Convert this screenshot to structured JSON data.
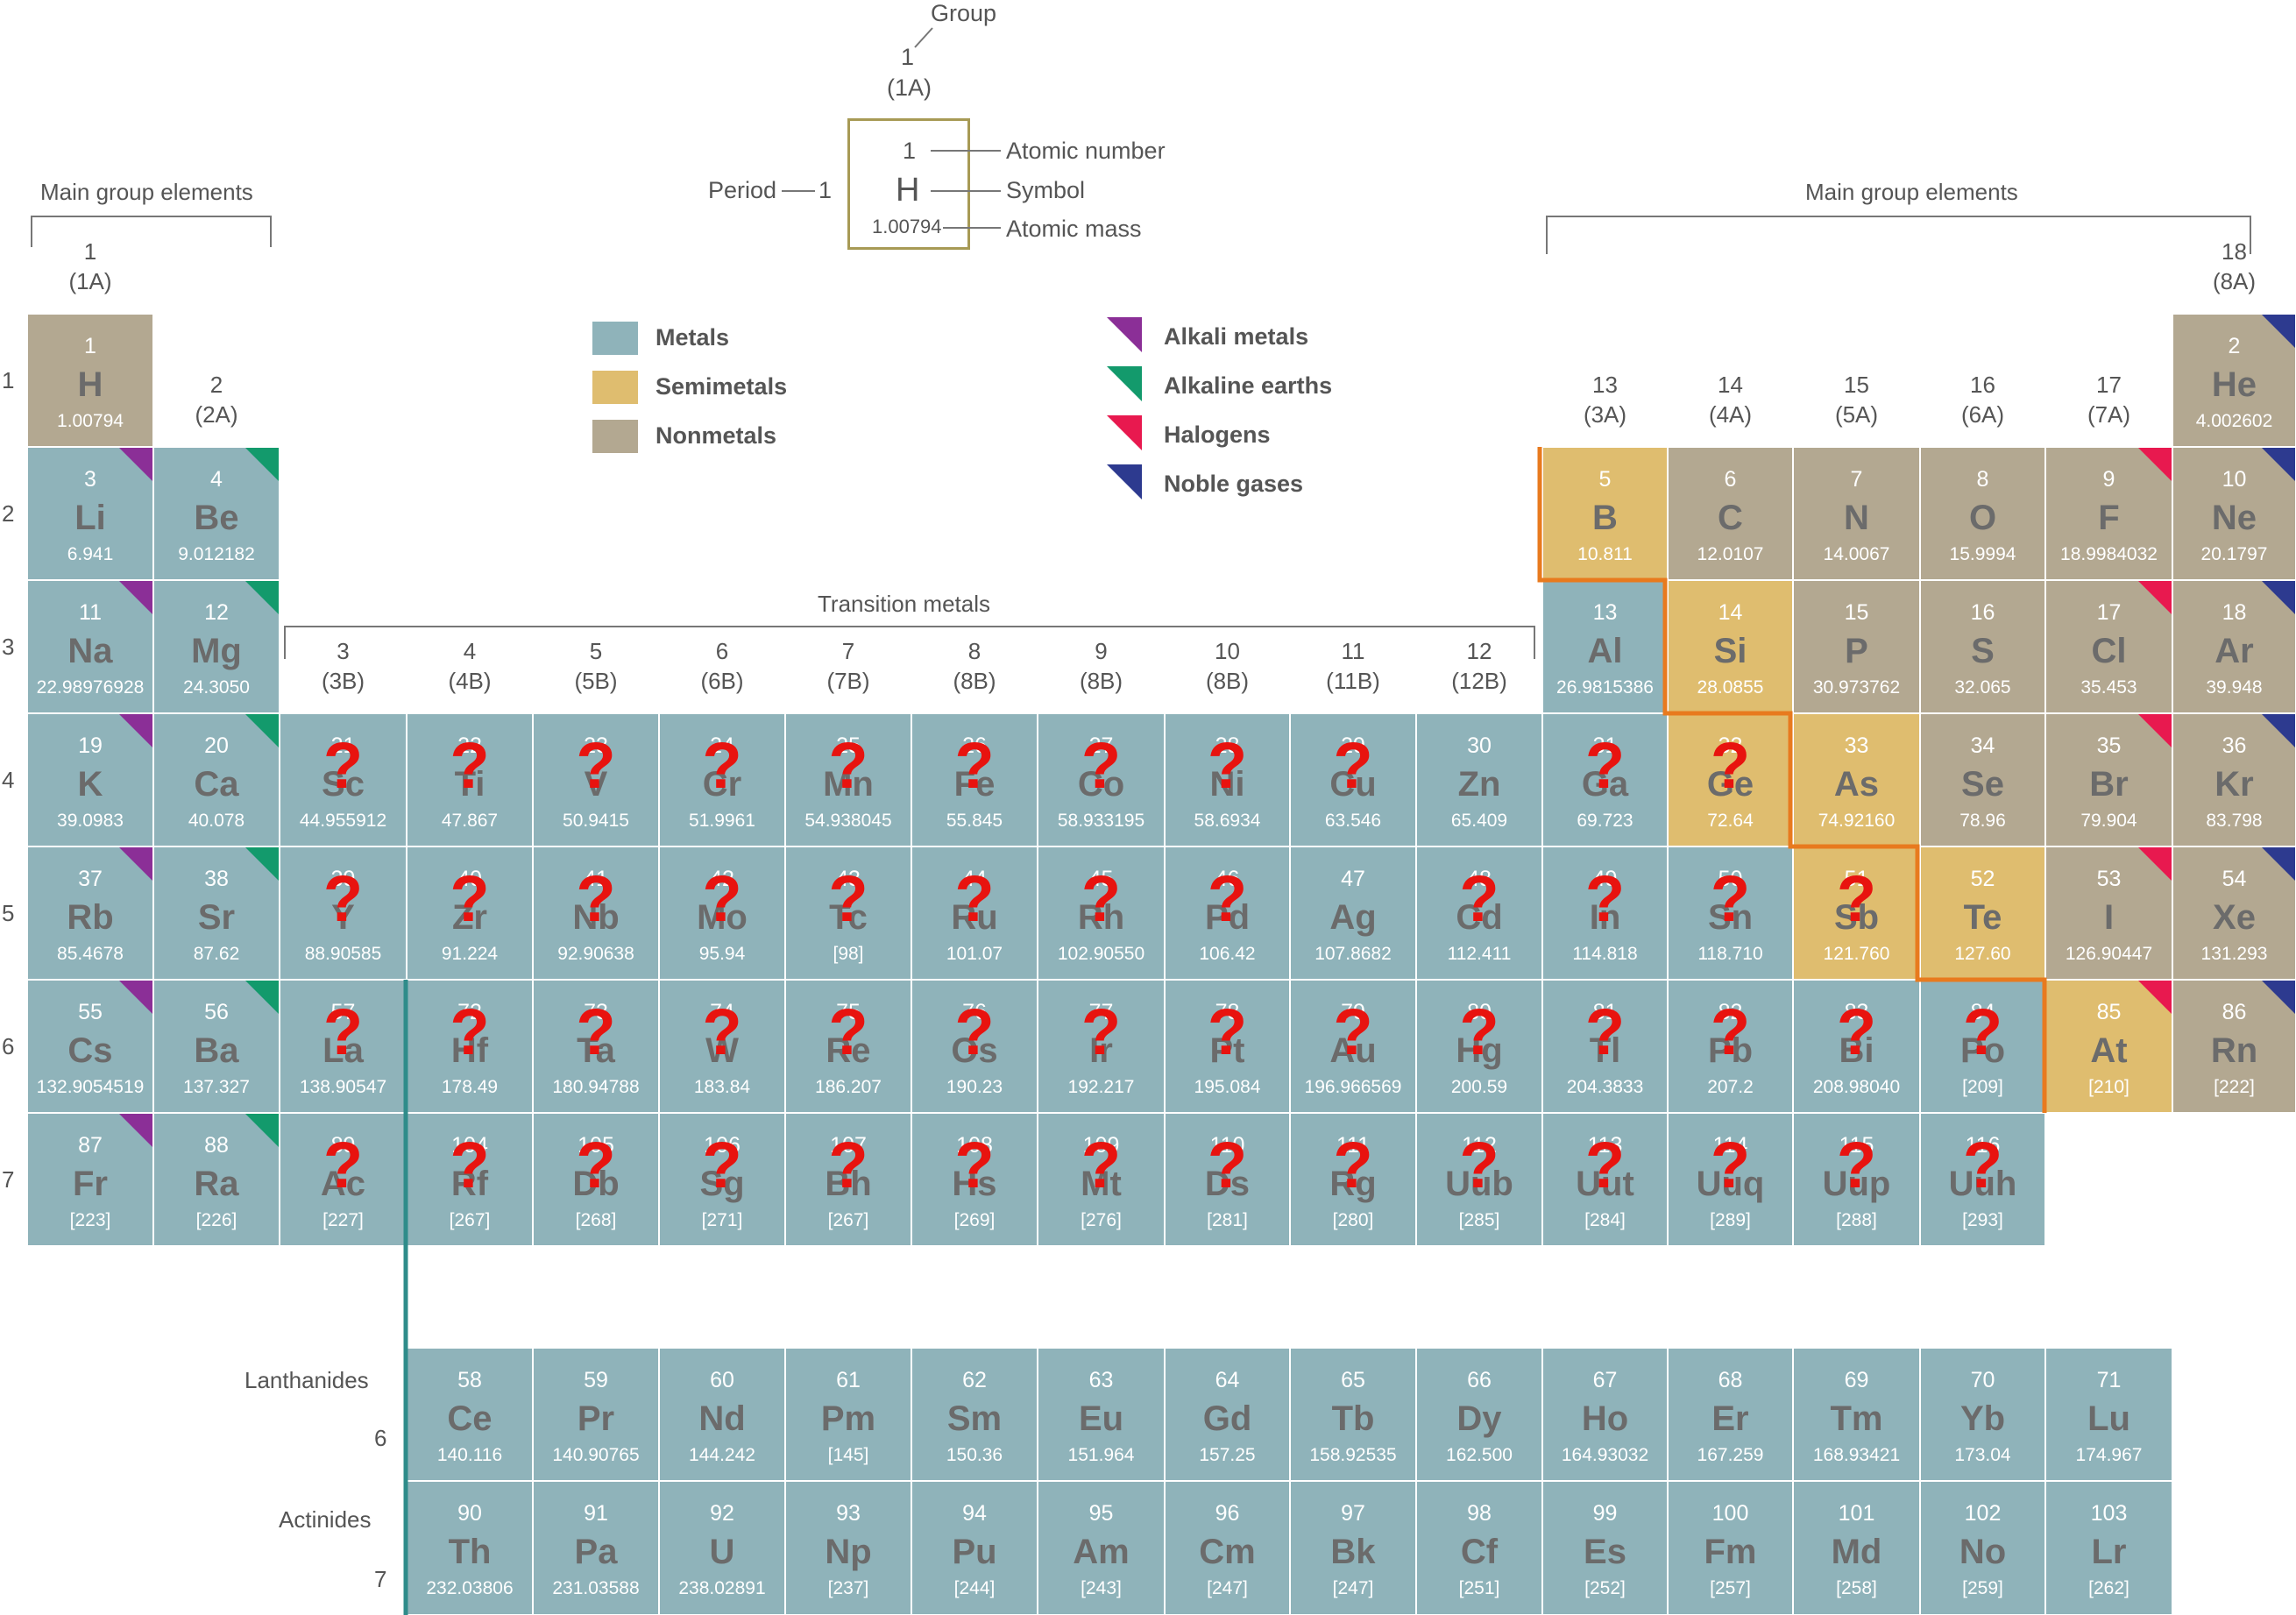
{
  "colors": {
    "metal": "#8fb3ba",
    "semimetal": "#dfbd6f",
    "nonmetal": "#b3a891",
    "alkali": "#8b2f97",
    "alkaline": "#139a6c",
    "halogen": "#e8194f",
    "noble": "#2d3a8f",
    "question": "#e8130f",
    "border": "#ffffff",
    "metalloid_line": "#e87a1e",
    "legend_box": "#a79a55",
    "fblock_line": "#2f8c8a"
  },
  "key": {
    "group_label": "Group",
    "group_num": "1",
    "group_sub": "(1A)",
    "period_label": "Period",
    "period_num": "1",
    "number": "1",
    "symbol": "H",
    "mass": "1.00794",
    "atomic_number_label": "Atomic number",
    "symbol_label": "Symbol",
    "atomic_mass_label": "Atomic mass"
  },
  "labels": {
    "main_group_left": "Main group elements",
    "main_group_right": "Main group elements",
    "transition": "Transition metals",
    "lanthanides": "Lanthanides",
    "actinides": "Actinides",
    "lan_period": "6",
    "act_period": "7"
  },
  "legend": {
    "categories": [
      {
        "label": "Metals",
        "color_key": "metal"
      },
      {
        "label": "Semimetals",
        "color_key": "semimetal"
      },
      {
        "label": "Nonmetals",
        "color_key": "nonmetal"
      }
    ],
    "families": [
      {
        "label": "Alkali metals",
        "color_key": "alkali"
      },
      {
        "label": "Alkaline earths",
        "color_key": "alkaline"
      },
      {
        "label": "Halogens",
        "color_key": "halogen"
      },
      {
        "label": "Noble gases",
        "color_key": "noble"
      }
    ]
  },
  "groups": [
    {
      "col": 1,
      "num": "1",
      "sub": "(1A)"
    },
    {
      "col": 2,
      "num": "2",
      "sub": "(2A)"
    },
    {
      "col": 3,
      "num": "3",
      "sub": "(3B)"
    },
    {
      "col": 4,
      "num": "4",
      "sub": "(4B)"
    },
    {
      "col": 5,
      "num": "5",
      "sub": "(5B)"
    },
    {
      "col": 6,
      "num": "6",
      "sub": "(6B)"
    },
    {
      "col": 7,
      "num": "7",
      "sub": "(7B)"
    },
    {
      "col": 8,
      "num": "8",
      "sub": "(8B)"
    },
    {
      "col": 9,
      "num": "9",
      "sub": "(8B)"
    },
    {
      "col": 10,
      "num": "10",
      "sub": "(8B)"
    },
    {
      "col": 11,
      "num": "11",
      "sub": "(11B)"
    },
    {
      "col": 12,
      "num": "12",
      "sub": "(12B)"
    },
    {
      "col": 13,
      "num": "13",
      "sub": "(3A)"
    },
    {
      "col": 14,
      "num": "14",
      "sub": "(4A)"
    },
    {
      "col": 15,
      "num": "15",
      "sub": "(5A)"
    },
    {
      "col": 16,
      "num": "16",
      "sub": "(6A)"
    },
    {
      "col": 17,
      "num": "17",
      "sub": "(7A)"
    },
    {
      "col": 18,
      "num": "18",
      "sub": "(8A)"
    }
  ],
  "periods": [
    "1",
    "2",
    "3",
    "4",
    "5",
    "6",
    "7"
  ],
  "elements": [
    {
      "n": "1",
      "s": "H",
      "m": "1.00794",
      "r": 1,
      "c": 1,
      "cat": "nonmetal"
    },
    {
      "n": "2",
      "s": "He",
      "m": "4.002602",
      "r": 1,
      "c": 18,
      "cat": "nonmetal",
      "fam": "noble"
    },
    {
      "n": "3",
      "s": "Li",
      "m": "6.941",
      "r": 2,
      "c": 1,
      "cat": "metal",
      "fam": "alkali"
    },
    {
      "n": "4",
      "s": "Be",
      "m": "9.012182",
      "r": 2,
      "c": 2,
      "cat": "metal",
      "fam": "alkaline"
    },
    {
      "n": "5",
      "s": "B",
      "m": "10.811",
      "r": 2,
      "c": 13,
      "cat": "semimetal"
    },
    {
      "n": "6",
      "s": "C",
      "m": "12.0107",
      "r": 2,
      "c": 14,
      "cat": "nonmetal"
    },
    {
      "n": "7",
      "s": "N",
      "m": "14.0067",
      "r": 2,
      "c": 15,
      "cat": "nonmetal"
    },
    {
      "n": "8",
      "s": "O",
      "m": "15.9994",
      "r": 2,
      "c": 16,
      "cat": "nonmetal"
    },
    {
      "n": "9",
      "s": "F",
      "m": "18.9984032",
      "r": 2,
      "c": 17,
      "cat": "nonmetal",
      "fam": "halogen"
    },
    {
      "n": "10",
      "s": "Ne",
      "m": "20.1797",
      "r": 2,
      "c": 18,
      "cat": "nonmetal",
      "fam": "noble"
    },
    {
      "n": "11",
      "s": "Na",
      "m": "22.98976928",
      "r": 3,
      "c": 1,
      "cat": "metal",
      "fam": "alkali"
    },
    {
      "n": "12",
      "s": "Mg",
      "m": "24.3050",
      "r": 3,
      "c": 2,
      "cat": "metal",
      "fam": "alkaline"
    },
    {
      "n": "13",
      "s": "Al",
      "m": "26.9815386",
      "r": 3,
      "c": 13,
      "cat": "metal"
    },
    {
      "n": "14",
      "s": "Si",
      "m": "28.0855",
      "r": 3,
      "c": 14,
      "cat": "semimetal"
    },
    {
      "n": "15",
      "s": "P",
      "m": "30.973762",
      "r": 3,
      "c": 15,
      "cat": "nonmetal"
    },
    {
      "n": "16",
      "s": "S",
      "m": "32.065",
      "r": 3,
      "c": 16,
      "cat": "nonmetal"
    },
    {
      "n": "17",
      "s": "Cl",
      "m": "35.453",
      "r": 3,
      "c": 17,
      "cat": "nonmetal",
      "fam": "halogen"
    },
    {
      "n": "18",
      "s": "Ar",
      "m": "39.948",
      "r": 3,
      "c": 18,
      "cat": "nonmetal",
      "fam": "noble"
    },
    {
      "n": "19",
      "s": "K",
      "m": "39.0983",
      "r": 4,
      "c": 1,
      "cat": "metal",
      "fam": "alkali"
    },
    {
      "n": "20",
      "s": "Ca",
      "m": "40.078",
      "r": 4,
      "c": 2,
      "cat": "metal",
      "fam": "alkaline"
    },
    {
      "n": "21",
      "s": "Sc",
      "m": "44.955912",
      "r": 4,
      "c": 3,
      "cat": "metal",
      "q": true
    },
    {
      "n": "22",
      "s": "Ti",
      "m": "47.867",
      "r": 4,
      "c": 4,
      "cat": "metal",
      "q": true
    },
    {
      "n": "23",
      "s": "V",
      "m": "50.9415",
      "r": 4,
      "c": 5,
      "cat": "metal",
      "q": true
    },
    {
      "n": "24",
      "s": "Cr",
      "m": "51.9961",
      "r": 4,
      "c": 6,
      "cat": "metal",
      "q": true
    },
    {
      "n": "25",
      "s": "Mn",
      "m": "54.938045",
      "r": 4,
      "c": 7,
      "cat": "metal",
      "q": true
    },
    {
      "n": "26",
      "s": "Fe",
      "m": "55.845",
      "r": 4,
      "c": 8,
      "cat": "metal",
      "q": true
    },
    {
      "n": "27",
      "s": "Co",
      "m": "58.933195",
      "r": 4,
      "c": 9,
      "cat": "metal",
      "q": true
    },
    {
      "n": "28",
      "s": "Ni",
      "m": "58.6934",
      "r": 4,
      "c": 10,
      "cat": "metal",
      "q": true
    },
    {
      "n": "29",
      "s": "Cu",
      "m": "63.546",
      "r": 4,
      "c": 11,
      "cat": "metal",
      "q": true
    },
    {
      "n": "30",
      "s": "Zn",
      "m": "65.409",
      "r": 4,
      "c": 12,
      "cat": "metal"
    },
    {
      "n": "31",
      "s": "Ga",
      "m": "69.723",
      "r": 4,
      "c": 13,
      "cat": "metal",
      "q": true
    },
    {
      "n": "32",
      "s": "Ge",
      "m": "72.64",
      "r": 4,
      "c": 14,
      "cat": "semimetal",
      "q": true
    },
    {
      "n": "33",
      "s": "As",
      "m": "74.92160",
      "r": 4,
      "c": 15,
      "cat": "semimetal"
    },
    {
      "n": "34",
      "s": "Se",
      "m": "78.96",
      "r": 4,
      "c": 16,
      "cat": "nonmetal"
    },
    {
      "n": "35",
      "s": "Br",
      "m": "79.904",
      "r": 4,
      "c": 17,
      "cat": "nonmetal",
      "fam": "halogen"
    },
    {
      "n": "36",
      "s": "Kr",
      "m": "83.798",
      "r": 4,
      "c": 18,
      "cat": "nonmetal",
      "fam": "noble"
    },
    {
      "n": "37",
      "s": "Rb",
      "m": "85.4678",
      "r": 5,
      "c": 1,
      "cat": "metal",
      "fam": "alkali"
    },
    {
      "n": "38",
      "s": "Sr",
      "m": "87.62",
      "r": 5,
      "c": 2,
      "cat": "metal",
      "fam": "alkaline"
    },
    {
      "n": "39",
      "s": "Y",
      "m": "88.90585",
      "r": 5,
      "c": 3,
      "cat": "metal",
      "q": true
    },
    {
      "n": "40",
      "s": "Zr",
      "m": "91.224",
      "r": 5,
      "c": 4,
      "cat": "metal",
      "q": true
    },
    {
      "n": "41",
      "s": "Nb",
      "m": "92.90638",
      "r": 5,
      "c": 5,
      "cat": "metal",
      "q": true
    },
    {
      "n": "42",
      "s": "Mo",
      "m": "95.94",
      "r": 5,
      "c": 6,
      "cat": "metal",
      "q": true
    },
    {
      "n": "43",
      "s": "Tc",
      "m": "[98]",
      "r": 5,
      "c": 7,
      "cat": "metal",
      "q": true
    },
    {
      "n": "44",
      "s": "Ru",
      "m": "101.07",
      "r": 5,
      "c": 8,
      "cat": "metal",
      "q": true
    },
    {
      "n": "45",
      "s": "Rh",
      "m": "102.90550",
      "r": 5,
      "c": 9,
      "cat": "metal",
      "q": true
    },
    {
      "n": "46",
      "s": "Pd",
      "m": "106.42",
      "r": 5,
      "c": 10,
      "cat": "metal",
      "q": true
    },
    {
      "n": "47",
      "s": "Ag",
      "m": "107.8682",
      "r": 5,
      "c": 11,
      "cat": "metal"
    },
    {
      "n": "48",
      "s": "Cd",
      "m": "112.411",
      "r": 5,
      "c": 12,
      "cat": "metal",
      "q": true
    },
    {
      "n": "49",
      "s": "In",
      "m": "114.818",
      "r": 5,
      "c": 13,
      "cat": "metal",
      "q": true
    },
    {
      "n": "50",
      "s": "Sn",
      "m": "118.710",
      "r": 5,
      "c": 14,
      "cat": "metal",
      "q": true
    },
    {
      "n": "51",
      "s": "Sb",
      "m": "121.760",
      "r": 5,
      "c": 15,
      "cat": "semimetal",
      "q": true
    },
    {
      "n": "52",
      "s": "Te",
      "m": "127.60",
      "r": 5,
      "c": 16,
      "cat": "semimetal"
    },
    {
      "n": "53",
      "s": "I",
      "m": "126.90447",
      "r": 5,
      "c": 17,
      "cat": "nonmetal",
      "fam": "halogen"
    },
    {
      "n": "54",
      "s": "Xe",
      "m": "131.293",
      "r": 5,
      "c": 18,
      "cat": "nonmetal",
      "fam": "noble"
    },
    {
      "n": "55",
      "s": "Cs",
      "m": "132.9054519",
      "r": 6,
      "c": 1,
      "cat": "metal",
      "fam": "alkali"
    },
    {
      "n": "56",
      "s": "Ba",
      "m": "137.327",
      "r": 6,
      "c": 2,
      "cat": "metal",
      "fam": "alkaline"
    },
    {
      "n": "57",
      "s": "La",
      "m": "138.90547",
      "r": 6,
      "c": 3,
      "cat": "metal",
      "q": true
    },
    {
      "n": "72",
      "s": "Hf",
      "m": "178.49",
      "r": 6,
      "c": 4,
      "cat": "metal",
      "q": true
    },
    {
      "n": "73",
      "s": "Ta",
      "m": "180.94788",
      "r": 6,
      "c": 5,
      "cat": "metal",
      "q": true
    },
    {
      "n": "74",
      "s": "W",
      "m": "183.84",
      "r": 6,
      "c": 6,
      "cat": "metal",
      "q": true
    },
    {
      "n": "75",
      "s": "Re",
      "m": "186.207",
      "r": 6,
      "c": 7,
      "cat": "metal",
      "q": true
    },
    {
      "n": "76",
      "s": "Os",
      "m": "190.23",
      "r": 6,
      "c": 8,
      "cat": "metal",
      "q": true
    },
    {
      "n": "77",
      "s": "Ir",
      "m": "192.217",
      "r": 6,
      "c": 9,
      "cat": "metal",
      "q": true
    },
    {
      "n": "78",
      "s": "Pt",
      "m": "195.084",
      "r": 6,
      "c": 10,
      "cat": "metal",
      "q": true
    },
    {
      "n": "79",
      "s": "Au",
      "m": "196.966569",
      "r": 6,
      "c": 11,
      "cat": "metal",
      "q": true
    },
    {
      "n": "80",
      "s": "Hg",
      "m": "200.59",
      "r": 6,
      "c": 12,
      "cat": "metal",
      "q": true
    },
    {
      "n": "81",
      "s": "Tl",
      "m": "204.3833",
      "r": 6,
      "c": 13,
      "cat": "metal",
      "q": true
    },
    {
      "n": "82",
      "s": "Pb",
      "m": "207.2",
      "r": 6,
      "c": 14,
      "cat": "metal",
      "q": true
    },
    {
      "n": "83",
      "s": "Bi",
      "m": "208.98040",
      "r": 6,
      "c": 15,
      "cat": "metal",
      "q": true
    },
    {
      "n": "84",
      "s": "Po",
      "m": "[209]",
      "r": 6,
      "c": 16,
      "cat": "metal",
      "q": true
    },
    {
      "n": "85",
      "s": "At",
      "m": "[210]",
      "r": 6,
      "c": 17,
      "cat": "semimetal",
      "fam": "halogen"
    },
    {
      "n": "86",
      "s": "Rn",
      "m": "[222]",
      "r": 6,
      "c": 18,
      "cat": "nonmetal",
      "fam": "noble"
    },
    {
      "n": "87",
      "s": "Fr",
      "m": "[223]",
      "r": 7,
      "c": 1,
      "cat": "metal",
      "fam": "alkali"
    },
    {
      "n": "88",
      "s": "Ra",
      "m": "[226]",
      "r": 7,
      "c": 2,
      "cat": "metal",
      "fam": "alkaline"
    },
    {
      "n": "89",
      "s": "Ac",
      "m": "[227]",
      "r": 7,
      "c": 3,
      "cat": "metal",
      "q": true
    },
    {
      "n": "104",
      "s": "Rf",
      "m": "[267]",
      "r": 7,
      "c": 4,
      "cat": "metal",
      "q": true
    },
    {
      "n": "105",
      "s": "Db",
      "m": "[268]",
      "r": 7,
      "c": 5,
      "cat": "metal",
      "q": true
    },
    {
      "n": "106",
      "s": "Sg",
      "m": "[271]",
      "r": 7,
      "c": 6,
      "cat": "metal",
      "q": true
    },
    {
      "n": "107",
      "s": "Bh",
      "m": "[267]",
      "r": 7,
      "c": 7,
      "cat": "metal",
      "q": true
    },
    {
      "n": "108",
      "s": "Hs",
      "m": "[269]",
      "r": 7,
      "c": 8,
      "cat": "metal",
      "q": true
    },
    {
      "n": "109",
      "s": "Mt",
      "m": "[276]",
      "r": 7,
      "c": 9,
      "cat": "metal",
      "q": true
    },
    {
      "n": "110",
      "s": "Ds",
      "m": "[281]",
      "r": 7,
      "c": 10,
      "cat": "metal",
      "q": true
    },
    {
      "n": "111",
      "s": "Rg",
      "m": "[280]",
      "r": 7,
      "c": 11,
      "cat": "metal",
      "q": true
    },
    {
      "n": "112",
      "s": "Uub",
      "m": "[285]",
      "r": 7,
      "c": 12,
      "cat": "metal",
      "q": true
    },
    {
      "n": "113",
      "s": "Uut",
      "m": "[284]",
      "r": 7,
      "c": 13,
      "cat": "metal",
      "q": true
    },
    {
      "n": "114",
      "s": "Uuq",
      "m": "[289]",
      "r": 7,
      "c": 14,
      "cat": "metal",
      "q": true
    },
    {
      "n": "115",
      "s": "Uup",
      "m": "[288]",
      "r": 7,
      "c": 15,
      "cat": "metal",
      "q": true
    },
    {
      "n": "116",
      "s": "Uuh",
      "m": "[293]",
      "r": 7,
      "c": 16,
      "cat": "metal",
      "q": true
    }
  ],
  "lanthanides": [
    {
      "n": "58",
      "s": "Ce",
      "m": "140.116"
    },
    {
      "n": "59",
      "s": "Pr",
      "m": "140.90765"
    },
    {
      "n": "60",
      "s": "Nd",
      "m": "144.242"
    },
    {
      "n": "61",
      "s": "Pm",
      "m": "[145]"
    },
    {
      "n": "62",
      "s": "Sm",
      "m": "150.36"
    },
    {
      "n": "63",
      "s": "Eu",
      "m": "151.964"
    },
    {
      "n": "64",
      "s": "Gd",
      "m": "157.25"
    },
    {
      "n": "65",
      "s": "Tb",
      "m": "158.92535"
    },
    {
      "n": "66",
      "s": "Dy",
      "m": "162.500"
    },
    {
      "n": "67",
      "s": "Ho",
      "m": "164.93032"
    },
    {
      "n": "68",
      "s": "Er",
      "m": "167.259"
    },
    {
      "n": "69",
      "s": "Tm",
      "m": "168.93421"
    },
    {
      "n": "70",
      "s": "Yb",
      "m": "173.04"
    },
    {
      "n": "71",
      "s": "Lu",
      "m": "174.967"
    }
  ],
  "actinides": [
    {
      "n": "90",
      "s": "Th",
      "m": "232.03806"
    },
    {
      "n": "91",
      "s": "Pa",
      "m": "231.03588"
    },
    {
      "n": "92",
      "s": "U",
      "m": "238.02891"
    },
    {
      "n": "93",
      "s": "Np",
      "m": "[237]"
    },
    {
      "n": "94",
      "s": "Pu",
      "m": "[244]"
    },
    {
      "n": "95",
      "s": "Am",
      "m": "[243]"
    },
    {
      "n": "96",
      "s": "Cm",
      "m": "[247]"
    },
    {
      "n": "97",
      "s": "Bk",
      "m": "[247]"
    },
    {
      "n": "98",
      "s": "Cf",
      "m": "[251]"
    },
    {
      "n": "99",
      "s": "Es",
      "m": "[252]"
    },
    {
      "n": "100",
      "s": "Fm",
      "m": "[257]"
    },
    {
      "n": "101",
      "s": "Md",
      "m": "[258]"
    },
    {
      "n": "102",
      "s": "No",
      "m": "[259]"
    },
    {
      "n": "103",
      "s": "Lr",
      "m": "[262]"
    }
  ]
}
